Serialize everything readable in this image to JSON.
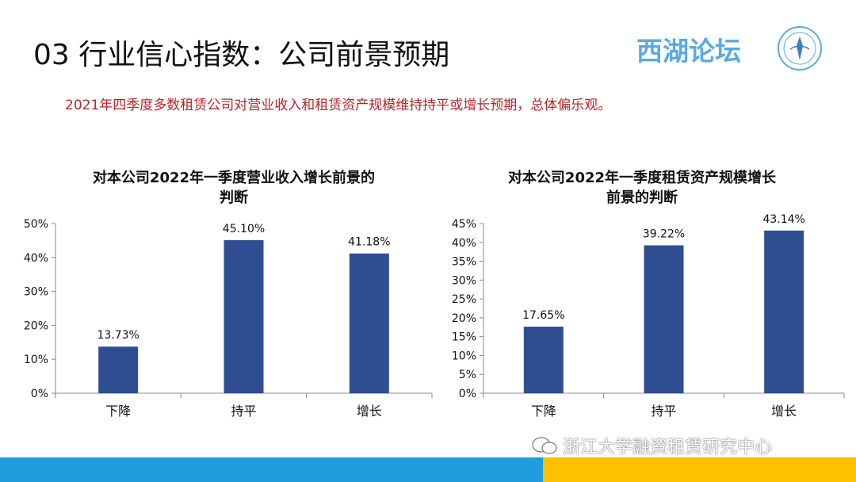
{
  "header": {
    "title": "03 行业信心指数：公司前景预期",
    "brand": "西湖论坛",
    "subtitle": "2021年四季度多数租赁公司对营业收入和租赁资产规模维持持平或增长预期，总体偏乐观。"
  },
  "footer": {
    "watermark": "浙江大学融资租赁研究中心"
  },
  "colors": {
    "bar": "#2f4e92",
    "subtitle": "#b8262b",
    "brand": "#5aa9e6",
    "band_blue": "#1e9cdc",
    "band_yellow": "#ffc000"
  },
  "chart_data": [
    {
      "type": "bar",
      "title_lines": [
        "对本公司2022年一季度营业收入增长前景的",
        "判断"
      ],
      "categories": [
        "下降",
        "持平",
        "增长"
      ],
      "values": [
        13.73,
        45.1,
        41.18
      ],
      "value_labels": [
        "13.73%",
        "45.10%",
        "41.18%"
      ],
      "ylim": [
        0,
        50
      ],
      "yticks": [
        0,
        10,
        20,
        30,
        40,
        50
      ],
      "ytick_labels": [
        "0%",
        "10%",
        "20%",
        "30%",
        "40%",
        "50%"
      ],
      "grid": false
    },
    {
      "type": "bar",
      "title_lines": [
        "对本公司2022年一季度租赁资产规模增长",
        "前景的判断"
      ],
      "categories": [
        "下降",
        "持平",
        "增长"
      ],
      "values": [
        17.65,
        39.22,
        43.14
      ],
      "value_labels": [
        "17.65%",
        "39.22%",
        "43.14%"
      ],
      "ylim": [
        0,
        45
      ],
      "yticks": [
        0,
        5,
        10,
        15,
        20,
        25,
        30,
        35,
        40,
        45
      ],
      "ytick_labels": [
        "0%",
        "5%",
        "10%",
        "15%",
        "20%",
        "25%",
        "30%",
        "35%",
        "40%",
        "45%"
      ],
      "grid": false
    }
  ]
}
